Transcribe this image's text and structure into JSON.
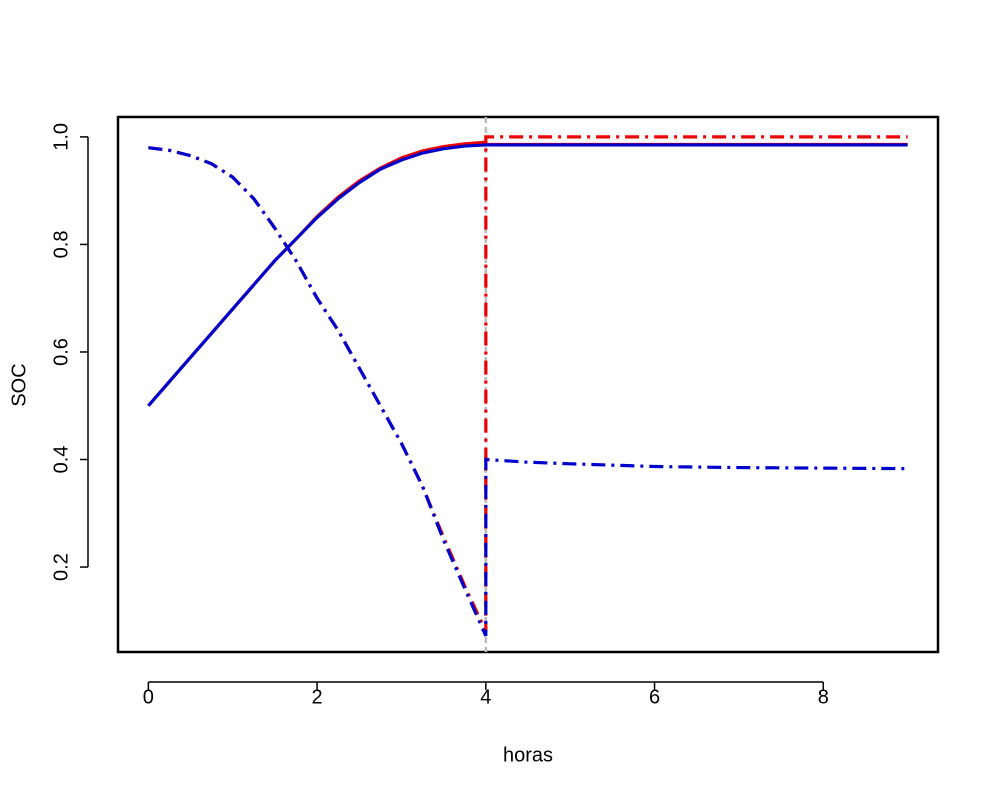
{
  "chart_data": {
    "type": "line",
    "xlabel": "horas",
    "ylabel": "SOC",
    "x": [
      0,
      0.25,
      0.5,
      0.75,
      1,
      1.25,
      1.5,
      1.75,
      2,
      2.25,
      2.5,
      2.75,
      3,
      3.25,
      3.5,
      3.75,
      4,
      4,
      4.5,
      5,
      6,
      7,
      8,
      9
    ],
    "series": [
      {
        "color": "#ee0000",
        "dash": "solid",
        "values": [
          0.5,
          0.545,
          0.59,
          0.635,
          0.68,
          0.725,
          0.77,
          0.81,
          0.852,
          0.888,
          0.918,
          0.942,
          0.961,
          0.974,
          0.982,
          0.987,
          0.99,
          0.986,
          0.986,
          0.986,
          0.986,
          0.986,
          0.986,
          0.986
        ]
      },
      {
        "color": "#0000cc",
        "dash": "solid",
        "values": [
          0.5,
          0.545,
          0.59,
          0.635,
          0.68,
          0.725,
          0.77,
          0.81,
          0.85,
          0.885,
          0.915,
          0.94,
          0.957,
          0.97,
          0.978,
          0.983,
          0.985,
          0.985,
          0.985,
          0.985,
          0.985,
          0.985,
          0.985,
          0.985
        ]
      },
      {
        "color": "#ee0000",
        "dash": "dashdot",
        "values": [
          0.98,
          0.975,
          0.965,
          0.95,
          0.925,
          0.885,
          0.83,
          0.77,
          0.7,
          0.64,
          0.57,
          0.5,
          0.43,
          0.35,
          0.255,
          0.165,
          0.08,
          1.0,
          1.0,
          1.0,
          1.0,
          1.0,
          1.0,
          1.0
        ]
      },
      {
        "color": "#0000cc",
        "dash": "dashdot",
        "values": [
          0.98,
          0.975,
          0.965,
          0.95,
          0.925,
          0.885,
          0.83,
          0.77,
          0.7,
          0.64,
          0.57,
          0.5,
          0.43,
          0.35,
          0.25,
          0.16,
          0.072,
          0.4,
          0.395,
          0.392,
          0.387,
          0.385,
          0.384,
          0.383
        ]
      }
    ],
    "vline": {
      "x": 4,
      "color": "#bbbbbb"
    },
    "xlim": [
      -0.36,
      9.36
    ],
    "ylim": [
      0.042,
      1.037
    ],
    "xticks": [
      0,
      2,
      4,
      6,
      8
    ],
    "yticks": [
      0.2,
      0.4,
      0.6,
      0.8,
      {
        "value": 1,
        "label": "1.0"
      }
    ]
  }
}
